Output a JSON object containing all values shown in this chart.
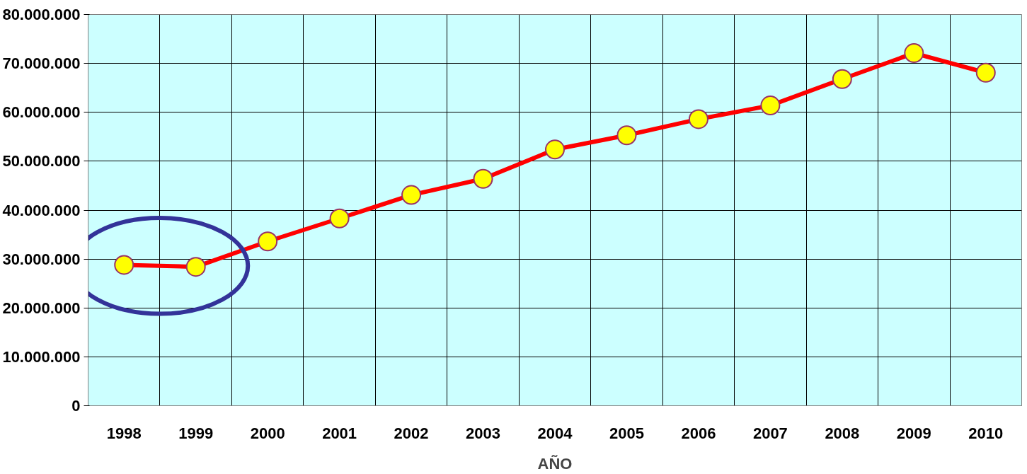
{
  "chart_data": {
    "type": "line",
    "xlabel": "AÑO",
    "categories": [
      "1998",
      "1999",
      "2000",
      "2001",
      "2002",
      "2003",
      "2004",
      "2005",
      "2006",
      "2007",
      "2008",
      "2009",
      "2010"
    ],
    "series": [
      {
        "color": "#ff0000",
        "values": [
          28800000,
          28400000,
          33600000,
          38300000,
          43100000,
          46400000,
          52400000,
          55300000,
          58600000,
          61400000,
          66800000,
          72100000,
          68100000
        ]
      }
    ],
    "ylim": [
      0,
      80000000
    ],
    "yticks": [
      {
        "value": 0,
        "label": "0"
      },
      {
        "value": 10000000,
        "label": "10.000.000"
      },
      {
        "value": 20000000,
        "label": "20.000.000"
      },
      {
        "value": 30000000,
        "label": "30.000.000"
      },
      {
        "value": 40000000,
        "label": "40.000.000"
      },
      {
        "value": 50000000,
        "label": "50.000.000"
      },
      {
        "value": 60000000,
        "label": "60.000.000"
      },
      {
        "value": 70000000,
        "label": "70.000.000"
      },
      {
        "value": 80000000,
        "label": "80.000.000"
      }
    ],
    "grid": true,
    "marker": "circle",
    "line_style": "solid"
  }
}
